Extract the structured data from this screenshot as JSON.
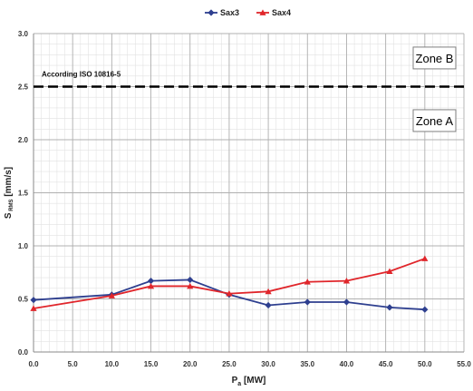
{
  "chart_data": {
    "type": "line",
    "xlabel": "P",
    "xlabel_sub": "a",
    "xlabel_unit": " [MW]",
    "ylabel": "S",
    "ylabel_sub": "RMS",
    "ylabel_unit": " [mm/s]",
    "xlim": [
      0,
      55
    ],
    "ylim": [
      0,
      3
    ],
    "x_ticks": [
      "0.0",
      "5.0",
      "10.0",
      "15.0",
      "20.0",
      "25.0",
      "30.0",
      "35.0",
      "40.0",
      "45.0",
      "50.0",
      "55.0"
    ],
    "y_ticks": [
      "0.0",
      "0.5",
      "1.0",
      "1.5",
      "2.0",
      "2.5",
      "3.0"
    ],
    "grid": true,
    "legend_position": "top-center",
    "series": [
      {
        "name": "Sax3",
        "color": "#2e3f8f",
        "marker": "diamond",
        "points": [
          [
            0,
            0.49
          ],
          [
            10,
            0.54
          ],
          [
            15,
            0.67
          ],
          [
            20,
            0.68
          ],
          [
            25,
            0.54
          ],
          [
            30,
            0.44
          ],
          [
            35,
            0.47
          ],
          [
            40,
            0.47
          ],
          [
            45.5,
            0.42
          ],
          [
            50,
            0.4
          ]
        ]
      },
      {
        "name": "Sax4",
        "color": "#e0262b",
        "marker": "triangle",
        "points": [
          [
            0,
            0.41
          ],
          [
            10,
            0.53
          ],
          [
            15,
            0.62
          ],
          [
            20,
            0.62
          ],
          [
            25,
            0.55
          ],
          [
            30,
            0.57
          ],
          [
            35,
            0.66
          ],
          [
            40,
            0.67
          ],
          [
            45.5,
            0.76
          ],
          [
            50,
            0.88
          ]
        ]
      }
    ],
    "threshold": {
      "value": 2.5,
      "label": "According ISO 10816-5",
      "style": "dashed",
      "color": "#000000"
    },
    "zones": [
      {
        "label": "Zone B",
        "anchor_y": 2.77
      },
      {
        "label": "Zone A",
        "anchor_y": 2.18
      }
    ]
  }
}
